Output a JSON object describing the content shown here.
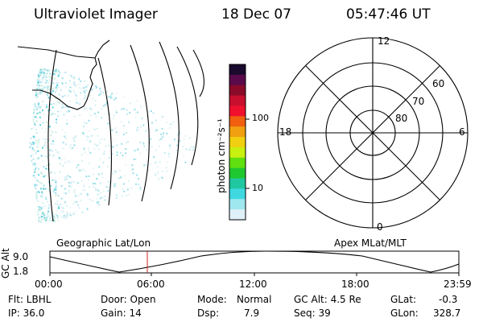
{
  "header": {
    "instrument": "Ultraviolet Imager",
    "date": "18 Dec 07",
    "time": "05:47:46 UT"
  },
  "colorbar": {
    "unit_label": "photon cm⁻²s⁻¹",
    "ticks": [
      "100",
      "10"
    ],
    "colors": [
      "#1a0a2e",
      "#5a0a4a",
      "#8a0a2a",
      "#c8102e",
      "#f0102e",
      "#f06010",
      "#f0a010",
      "#f0d010",
      "#c8f010",
      "#60e010",
      "#20c830",
      "#20c8a0",
      "#40d8e0",
      "#a0e8f0",
      "#e0f0f8"
    ]
  },
  "polar_plot": {
    "mlt_labels": {
      "top": "12",
      "left": "18",
      "right": "6",
      "bottom": "0"
    },
    "lat_labels": [
      "60",
      "70",
      "80"
    ]
  },
  "altitude_strip": {
    "ylabel": "GC Alt",
    "ymax": "9.0",
    "ymin": "1.8",
    "left_label": "Geographic Lat/Lon",
    "right_label": "Apex MLat/MLT",
    "x_ticks": [
      "00:00",
      "06:00",
      "12:00",
      "18:00",
      "23:59"
    ],
    "marker_color": "#cc2222"
  },
  "status": {
    "flt": "Flt: LBHL",
    "ip": "IP: 36.0",
    "door": "Door: Open",
    "gain": "Gain: 14",
    "mode_label": "Mode:",
    "mode_value": "Normal",
    "dsp_label": "Dsp:",
    "dsp_value": "7.9",
    "gc_alt": "GC Alt: 4.5 Re",
    "seq": "Seq: 39",
    "glat_label": "GLat:",
    "glat_value": "-0.3",
    "glon_label": "GLon:",
    "glon_value": "328.7"
  }
}
